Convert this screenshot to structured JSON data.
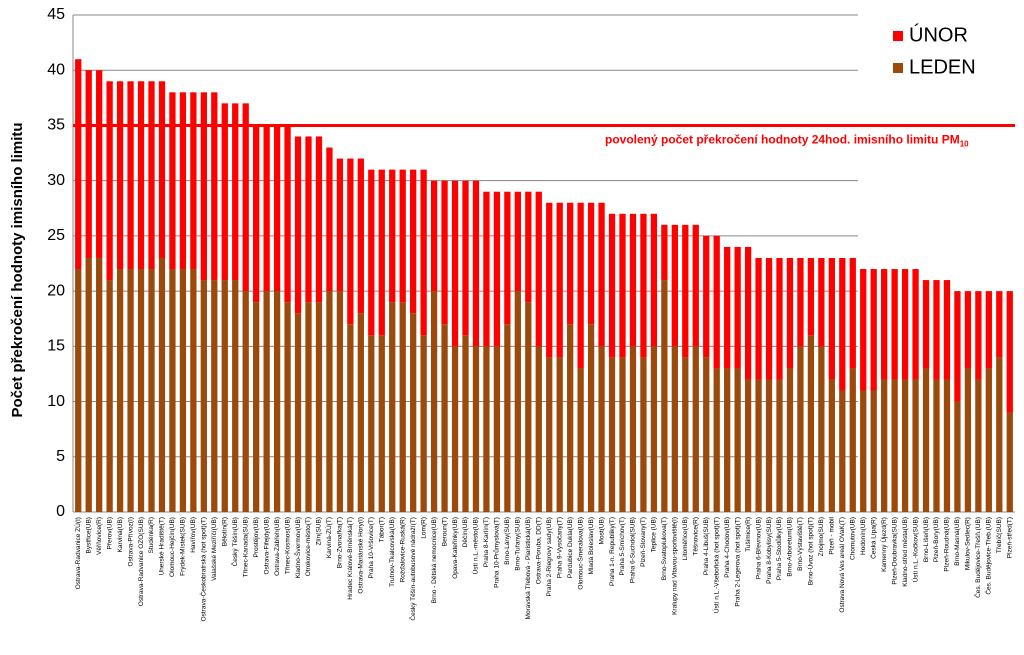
{
  "chart_data": {
    "type": "stacked_bar",
    "y_label": "Počet překročení hodnoty imisního limitu",
    "ylim": [
      0,
      45
    ],
    "yticks": [
      0,
      5,
      10,
      15,
      20,
      25,
      30,
      35,
      40,
      45
    ],
    "grid": true,
    "legend": "top-right",
    "reference_line": {
      "value": 35,
      "color": "#ff0000",
      "label": "povolený počet překročení hodnoty 24hod. imisního limitu PM",
      "label_sub": "10"
    },
    "categories": [
      "Ostrava-Radvanice ZÚ(I)",
      "Bystřice(UB)",
      "Věřňovice(R)",
      "Přerov(UB)",
      "Karviná(UB)",
      "Ostrava-Přívoz(I)",
      "Ostrava-Radvanice OZO(SUB)",
      "Studénka(R)",
      "Uherské Hradiště(T)",
      "Olomouc-Hejčín(UB)",
      "Frýdek-Místek(SUB)",
      "Havířov(UB)",
      "Ostrava-Českobratrská (hot spot)(T)",
      "Valašské Meziříčí(UB)",
      "Bělotín(R)",
      "Český Těšín(UB)",
      "Třinec-Kanada(SUB)",
      "Prostějov(UB)",
      "Ostrava-Fifejdy(UB)",
      "Ostrava-Zábřeh(UB)",
      "Třinec-Kosmos(UB)",
      "Kladno-Švermov(UB)",
      "Otrokovice-město(T)",
      "Zlín(SUB)",
      "Karviná-ZÚ(T)",
      "Brno-Zvonařka(T)",
      "Hradec Králové-Brněnská(T)",
      "Ostrava-Mariánské Hory(I)",
      "Praha 10-Vršovice(T)",
      "Tábor(T)",
      "Trutnov-Tkalcovská(UB)",
      "Rožďalovice-Ruská(R)",
      "Český Těšín-autobusové nádraží(T)",
      "Lom(R)",
      "Brno - Dětská nemocnice(UB)",
      "Beroun(T)",
      "Opava-Kateřinky(UB)",
      "Děčín(UB)",
      "Ústí n.L.-město(UB)",
      "Praha 8-Karlín(T)",
      "Praha 10-Průmyslová(T)",
      "Brno-Lány(SUB)",
      "Brno-Tuřany(SUB)",
      "Moravská Třebová - Piaristická(UB)",
      "Ostrava-Poruba, DD(T)",
      "Praha 2-Riegrovy sady(UB)",
      "Praha 9-Vysočany(T)",
      "Pardubice Dukla(UB)",
      "Olomouc-Šmeralova(UB)",
      "Mladá Boleslav(UB)",
      "Most(UB)",
      "Praha 1-n. Republiky(T)",
      "Praha 5-Smíchov(T)",
      "Praha 6-Suchdol(SUB)",
      "Plzeň-Slovany(T)",
      "Teplice (UB)",
      "Brno-Svatoplukova(T)",
      "Kralupy nad Vltavou-sportoviště(I)",
      "Litoměřice(UB)",
      "Těšnovice(R)",
      "Praha 4-Libuš(SUB)",
      "Ústí n.L.-Všebořická (hot spot)(T)",
      "Praha 4-Chodov(UB)",
      "Praha 2-Legerova (hot spot)(T)",
      "Tušimice(R)",
      "Praha 6-Břevnov(UB)",
      "Praha 8-Kobylisy(SUB)",
      "Praha 5-Stodůlky(UB)",
      "Brno-Arboretum(UB)",
      "Brno-Výstaviště(T)",
      "Brno-Úvoz (hot spot)(T)",
      "Znojmo(SUB)",
      "Plzeň - mobil",
      "Ostrava Nová Ves areál OVaK(T)",
      "Chomutov(UB)",
      "Hodonín(UB)",
      "Česká Lípa(R)",
      "Kamenný Újezd(R)",
      "Plzeň-Doubravka(SUB)",
      "Kladno-střed města(UB)",
      "Ústí n.L.-Kočkov(SUB)",
      "Brno-Líšeň(UB)",
      "Plzeň-Bory(UB)",
      "Plzeň-Roudná(UB)",
      "Brno-Masná(UB)",
      "Mikulov-Sedlec(R)",
      "Čes. Budějovice-Třešň.(UB)",
      "Čes. Budějovice-Třeb.(UB)",
      "Třebíč(SUB)",
      "Plzeň-střed(T)"
    ],
    "series": [
      {
        "name": "LEDEN",
        "color": "#9b4a0c",
        "values": [
          22,
          23,
          23,
          21,
          22,
          22,
          22,
          22,
          23,
          22,
          22,
          22,
          21,
          21,
          21,
          21,
          20,
          19,
          20,
          20,
          19,
          18,
          19,
          19,
          20,
          20,
          17,
          18,
          16,
          16,
          19,
          19,
          18,
          16,
          20,
          17,
          15,
          16,
          15,
          15,
          15,
          17,
          20,
          19,
          15,
          14,
          14,
          17,
          13,
          17,
          15,
          14,
          14,
          15,
          14,
          15,
          21,
          15,
          14,
          15,
          14,
          13,
          13,
          13,
          12,
          12,
          12,
          12,
          13,
          15,
          16,
          15,
          12,
          11,
          13,
          11,
          11,
          12,
          12,
          12,
          12,
          13,
          12,
          12,
          10,
          13,
          12,
          13,
          14,
          9
        ]
      },
      {
        "name": "ÚNOR",
        "color": "#ff0000",
        "values": [
          19,
          17,
          17,
          18,
          17,
          17,
          17,
          17,
          16,
          16,
          16,
          16,
          17,
          17,
          16,
          16,
          17,
          16,
          15,
          15,
          16,
          16,
          15,
          15,
          13,
          12,
          15,
          14,
          15,
          15,
          12,
          12,
          13,
          15,
          10,
          13,
          15,
          14,
          15,
          14,
          14,
          12,
          9,
          10,
          14,
          14,
          14,
          11,
          15,
          11,
          13,
          13,
          13,
          12,
          13,
          12,
          5,
          11,
          12,
          11,
          11,
          12,
          11,
          11,
          12,
          11,
          11,
          11,
          10,
          8,
          7,
          8,
          11,
          12,
          10,
          11,
          11,
          10,
          10,
          10,
          10,
          8,
          9,
          9,
          10,
          7,
          8,
          7,
          6,
          11
        ]
      }
    ]
  }
}
